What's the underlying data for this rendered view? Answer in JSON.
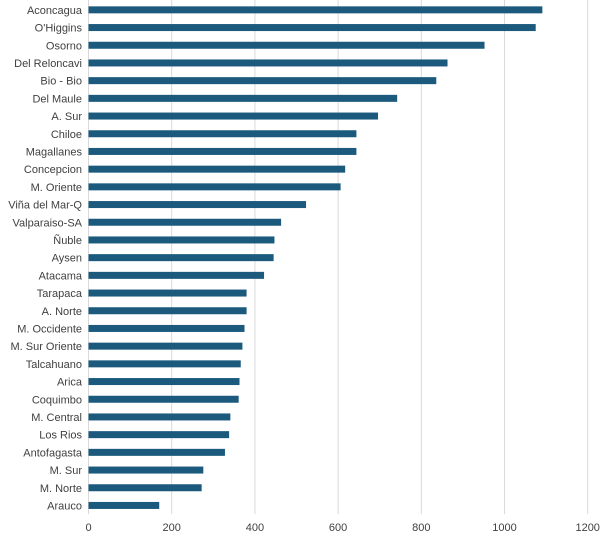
{
  "chart_data": {
    "type": "bar",
    "orientation": "horizontal",
    "title": "",
    "xlabel": "",
    "ylabel": "",
    "xlim": [
      0,
      1200
    ],
    "xticks": [
      0,
      200,
      400,
      600,
      800,
      1000,
      1200
    ],
    "grid": true,
    "bar_color": "#1b5a7d",
    "categories": [
      "Aconcagua",
      "O'Higgins",
      "Osorno",
      "Del Reloncavi",
      "Bio - Bio",
      "Del Maule",
      "A. Sur",
      "Chiloe",
      "Magallanes",
      "Concepcion",
      "M. Oriente",
      "Viña del Mar-Q",
      "Valparaiso-SA",
      "Ñuble",
      "Aysen",
      "Atacama",
      "Tarapaca",
      "A. Norte",
      "M. Occidente",
      "M. Sur Oriente",
      "Talcahuano",
      "Arica",
      "Coquimbo",
      "M. Central",
      "Los Rios",
      "Antofagasta",
      "M. Sur",
      "M. Norte",
      "Arauco"
    ],
    "values": [
      1091,
      1075,
      952,
      863,
      836,
      742,
      696,
      644,
      644,
      617,
      606,
      523,
      463,
      447,
      445,
      422,
      380,
      380,
      375,
      370,
      366,
      363,
      361,
      341,
      338,
      328,
      276,
      272,
      170
    ]
  }
}
